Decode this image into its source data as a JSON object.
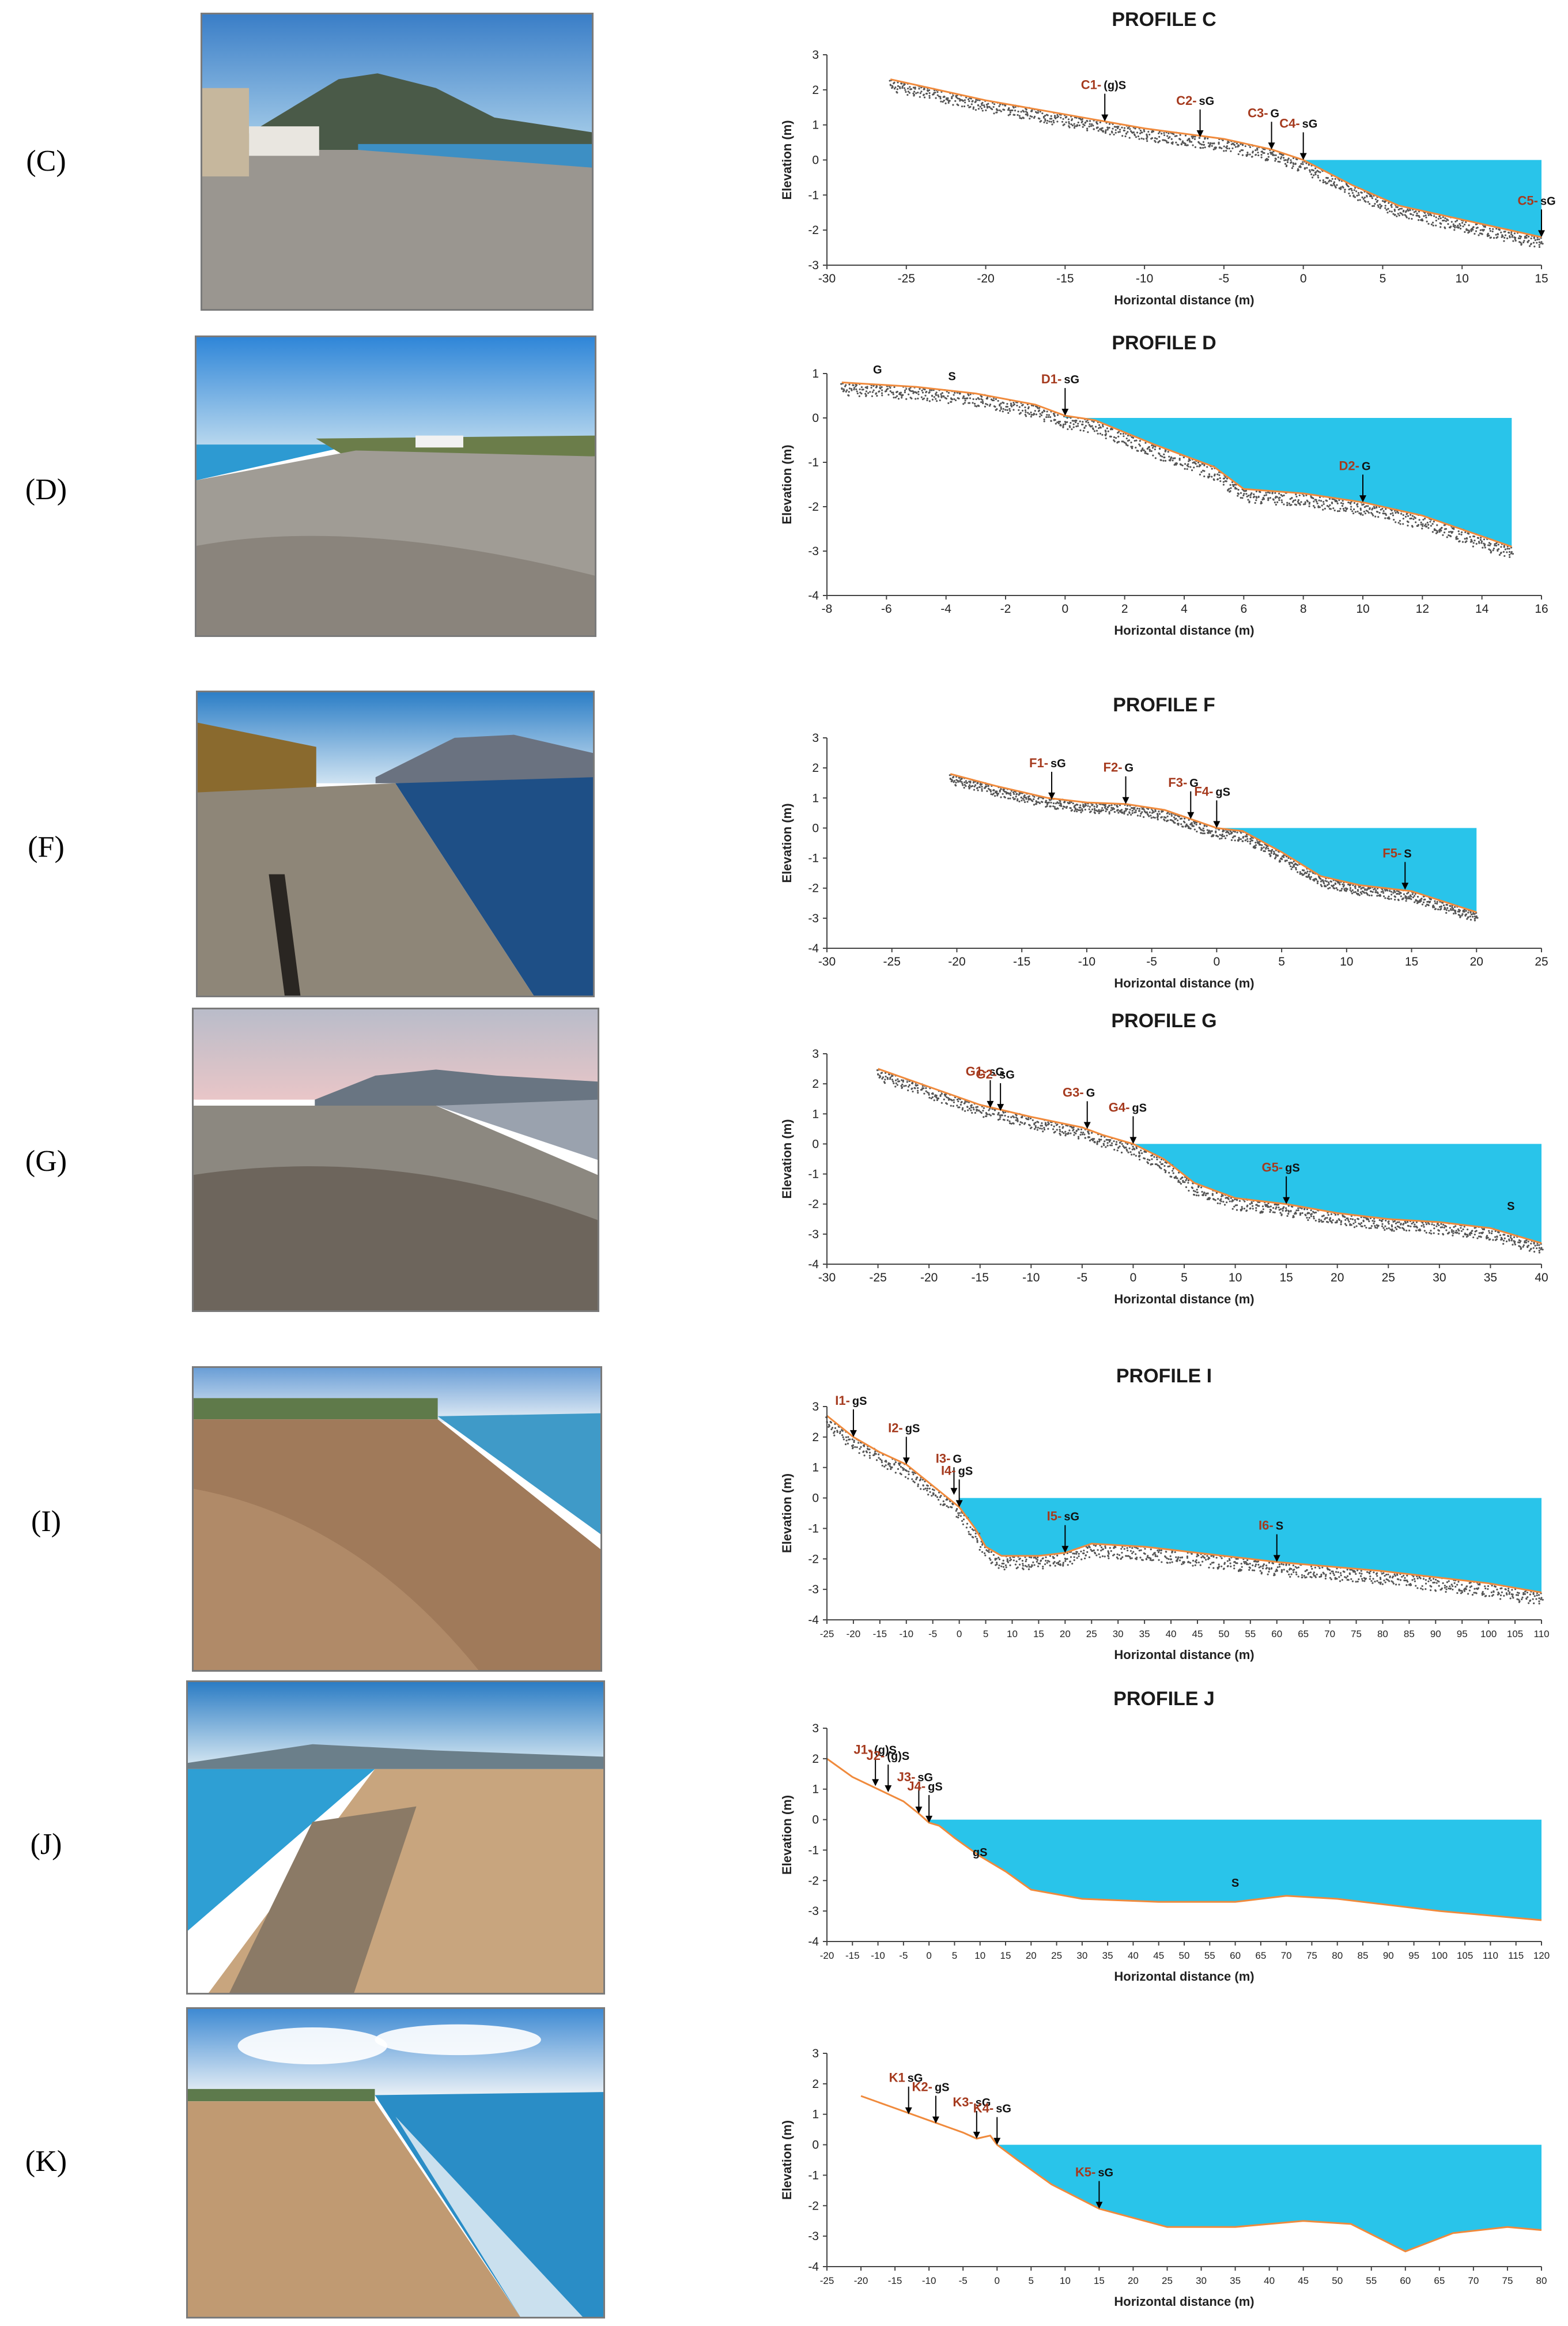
{
  "rows": [
    {
      "label": "(C)",
      "photo_desc": "photo-c"
    },
    {
      "label": "(D)",
      "photo_desc": "photo-d"
    },
    {
      "label": "(F)",
      "photo_desc": "photo-f"
    },
    {
      "label": "(G)",
      "photo_desc": "photo-g"
    },
    {
      "label": "(I)",
      "photo_desc": "photo-i"
    },
    {
      "label": "(J)",
      "photo_desc": "photo-j"
    },
    {
      "label": "(K)",
      "photo_desc": "photo-k"
    }
  ],
  "colors": {
    "water": "#29c4ea",
    "profile_line": "#f08a3c",
    "sample_label": "#a53a1e",
    "axis": "#444444",
    "sediment": "#555555"
  },
  "chart_data": [
    {
      "type": "area",
      "title": "PROFILE C",
      "ylabel": "Elevation (m)",
      "xlabel": "Horizontal distance (m)",
      "xlim": [
        -30,
        15
      ],
      "ylim": [
        -3,
        3
      ],
      "xticks": [
        -30,
        -25,
        -20,
        -15,
        -10,
        -5,
        0,
        5,
        10,
        15
      ],
      "yticks": [
        -3,
        -2,
        -1,
        0,
        1,
        2,
        3
      ],
      "profile": [
        [
          -26,
          2.3
        ],
        [
          -20,
          1.7
        ],
        [
          -15,
          1.3
        ],
        [
          -10,
          0.9
        ],
        [
          -5,
          0.6
        ],
        [
          -2,
          0.3
        ],
        [
          0,
          0
        ],
        [
          3,
          -0.7
        ],
        [
          6,
          -1.3
        ],
        [
          10,
          -1.7
        ],
        [
          15,
          -2.2
        ]
      ],
      "sediment_thickness": 0.35,
      "sediment_style": "dots",
      "samples": [
        {
          "id": "C1-",
          "code": "(g)S",
          "x": -12.5,
          "y": 1.1
        },
        {
          "id": "C2-",
          "code": "sG",
          "x": -6.5,
          "y": 0.65
        },
        {
          "id": "C3-",
          "code": "G",
          "x": -2,
          "y": 0.3
        },
        {
          "id": "C4-",
          "code": "sG",
          "x": 0,
          "y": 0.0
        },
        {
          "id": "C5-",
          "code": "sG",
          "x": 15,
          "y": -2.2
        }
      ],
      "annotations": []
    },
    {
      "type": "area",
      "title": "PROFILE D",
      "ylabel": "Elevation (m)",
      "xlabel": "Horizontal distance (m)",
      "xlim": [
        -8,
        16
      ],
      "ylim": [
        -4,
        1
      ],
      "xticks": [
        -8,
        -6,
        -4,
        -2,
        0,
        2,
        4,
        6,
        8,
        10,
        12,
        14,
        16
      ],
      "yticks": [
        -4,
        -3,
        -2,
        -1,
        0,
        1
      ],
      "profile": [
        [
          -7.5,
          0.8
        ],
        [
          -5,
          0.7
        ],
        [
          -3,
          0.55
        ],
        [
          -1,
          0.3
        ],
        [
          0,
          0.05
        ],
        [
          1,
          -0.05
        ],
        [
          3,
          -0.6
        ],
        [
          5,
          -1.1
        ],
        [
          6,
          -1.6
        ],
        [
          8,
          -1.7
        ],
        [
          10,
          -1.9
        ],
        [
          12,
          -2.2
        ],
        [
          15,
          -2.9
        ]
      ],
      "sediment_thickness": 0.3,
      "sediment_style": "dots",
      "samples": [
        {
          "id": "D1-",
          "code": "sG",
          "x": 0,
          "y": 0.05
        },
        {
          "id": "D2-",
          "code": "G",
          "x": 10,
          "y": -1.9
        }
      ],
      "annotations": [
        {
          "text": "G",
          "x": -6.3,
          "y": 1.0
        },
        {
          "text": "S",
          "x": -3.8,
          "y": 0.85
        }
      ]
    },
    {
      "type": "area",
      "title": "PROFILE F",
      "ylabel": "Elevation (m)",
      "xlabel": "Horizontal distance (m)",
      "xlim": [
        -30,
        25
      ],
      "ylim": [
        -4,
        3
      ],
      "xticks": [
        -30,
        -25,
        -20,
        -15,
        -10,
        -5,
        0,
        5,
        10,
        15,
        20,
        25
      ],
      "yticks": [
        -4,
        -3,
        -2,
        -1,
        0,
        1,
        2,
        3
      ],
      "profile": [
        [
          -20.5,
          1.8
        ],
        [
          -17,
          1.4
        ],
        [
          -13,
          1.0
        ],
        [
          -10,
          0.85
        ],
        [
          -7,
          0.8
        ],
        [
          -4,
          0.6
        ],
        [
          -2,
          0.3
        ],
        [
          0,
          0
        ],
        [
          2,
          -0.1
        ],
        [
          5,
          -0.8
        ],
        [
          8,
          -1.6
        ],
        [
          11,
          -1.9
        ],
        [
          15,
          -2.1
        ],
        [
          20,
          -2.8
        ]
      ],
      "sediment_thickness": 0.35,
      "sediment_style": "dots",
      "samples": [
        {
          "id": "F1-",
          "code": "sG",
          "x": -12.7,
          "y": 0.95
        },
        {
          "id": "F2-",
          "code": "G",
          "x": -7,
          "y": 0.8
        },
        {
          "id": "F3-",
          "code": "G",
          "x": -2,
          "y": 0.3
        },
        {
          "id": "F4-",
          "code": "gS",
          "x": 0,
          "y": 0.0
        },
        {
          "id": "F5-",
          "code": "S",
          "x": 14.5,
          "y": -2.05
        }
      ],
      "annotations": []
    },
    {
      "type": "area",
      "title": "PROFILE G",
      "ylabel": "Elevation (m)",
      "xlabel": "Horizontal distance (m)",
      "xlim": [
        -30,
        40
      ],
      "ylim": [
        -4,
        3
      ],
      "xticks": [
        -30,
        -25,
        -20,
        -15,
        -10,
        -5,
        0,
        5,
        10,
        15,
        20,
        25,
        30,
        35,
        40
      ],
      "yticks": [
        -4,
        -3,
        -2,
        -1,
        0,
        1,
        2,
        3
      ],
      "profile": [
        [
          -25,
          2.5
        ],
        [
          -20,
          1.9
        ],
        [
          -15,
          1.3
        ],
        [
          -10,
          0.9
        ],
        [
          -5,
          0.55
        ],
        [
          -3,
          0.3
        ],
        [
          0,
          0
        ],
        [
          3,
          -0.5
        ],
        [
          6,
          -1.3
        ],
        [
          10,
          -1.8
        ],
        [
          15,
          -2.0
        ],
        [
          20,
          -2.3
        ],
        [
          25,
          -2.5
        ],
        [
          30,
          -2.6
        ],
        [
          35,
          -2.8
        ],
        [
          40,
          -3.3
        ]
      ],
      "sediment_thickness": 0.4,
      "sediment_style": "dots",
      "samples": [
        {
          "id": "G1-",
          "code": "sG",
          "x": -14,
          "y": 1.2
        },
        {
          "id": "G2-",
          "code": "sG",
          "x": -13,
          "y": 1.1
        },
        {
          "id": "G3-",
          "code": "G",
          "x": -4.5,
          "y": 0.5
        },
        {
          "id": "G4-",
          "code": "gS",
          "x": 0,
          "y": 0.0
        },
        {
          "id": "G5-",
          "code": "gS",
          "x": 15,
          "y": -2.0
        }
      ],
      "annotations": [
        {
          "text": "S",
          "x": 37,
          "y": -2.2
        }
      ]
    },
    {
      "type": "area",
      "title": "PROFILE I",
      "ylabel": "Elevation (m)",
      "xlabel": "Horizontal distance (m)",
      "xlim": [
        -25,
        110
      ],
      "ylim": [
        -4,
        3
      ],
      "xticks": [
        -25,
        -20,
        -15,
        -10,
        -5,
        0,
        5,
        10,
        15,
        20,
        25,
        30,
        35,
        40,
        45,
        50,
        55,
        60,
        65,
        70,
        75,
        80,
        85,
        90,
        95,
        100,
        105,
        110
      ],
      "yticks": [
        -4,
        -3,
        -2,
        -1,
        0,
        1,
        2,
        3
      ],
      "profile": [
        [
          -25,
          2.7
        ],
        [
          -20,
          2.0
        ],
        [
          -15,
          1.5
        ],
        [
          -10,
          1.1
        ],
        [
          -5,
          0.4
        ],
        [
          0,
          -0.3
        ],
        [
          3,
          -1.0
        ],
        [
          5,
          -1.6
        ],
        [
          8,
          -1.9
        ],
        [
          15,
          -1.9
        ],
        [
          20,
          -1.8
        ],
        [
          25,
          -1.5
        ],
        [
          35,
          -1.6
        ],
        [
          50,
          -1.9
        ],
        [
          60,
          -2.1
        ],
        [
          80,
          -2.4
        ],
        [
          100,
          -2.8
        ],
        [
          110,
          -3.1
        ]
      ],
      "sediment_thickness": 0.45,
      "sediment_style": "dots",
      "samples": [
        {
          "id": "I1-",
          "code": "gS",
          "x": -20,
          "y": 2.0
        },
        {
          "id": "I2-",
          "code": "gS",
          "x": -10,
          "y": 1.1
        },
        {
          "id": "I3-",
          "code": "G",
          "x": -1,
          "y": 0.1
        },
        {
          "id": "I4-",
          "code": "gS",
          "x": 0,
          "y": -0.3
        },
        {
          "id": "I5-",
          "code": "sG",
          "x": 20,
          "y": -1.8
        },
        {
          "id": "I6-",
          "code": "S",
          "x": 60,
          "y": -2.1
        }
      ],
      "annotations": []
    },
    {
      "type": "area",
      "title": "PROFILE J",
      "ylabel": "Elevation (m)",
      "xlabel": "Horizontal distance (m)",
      "xlim": [
        -20,
        120
      ],
      "ylim": [
        -4,
        3
      ],
      "xticks": [
        -20,
        -15,
        -10,
        -5,
        0,
        5,
        10,
        15,
        20,
        25,
        30,
        35,
        40,
        45,
        50,
        55,
        60,
        65,
        70,
        75,
        80,
        85,
        90,
        95,
        100,
        105,
        110,
        115,
        120
      ],
      "yticks": [
        -4,
        -3,
        -2,
        -1,
        0,
        1,
        2,
        3
      ],
      "profile": [
        [
          -20,
          2.0
        ],
        [
          -15,
          1.4
        ],
        [
          -10,
          1.0
        ],
        [
          -5,
          0.6
        ],
        [
          -2,
          0.2
        ],
        [
          0,
          -0.1
        ],
        [
          2,
          -0.2
        ],
        [
          5,
          -0.6
        ],
        [
          10,
          -1.2
        ],
        [
          15,
          -1.7
        ],
        [
          20,
          -2.3
        ],
        [
          30,
          -2.6
        ],
        [
          45,
          -2.7
        ],
        [
          60,
          -2.7
        ],
        [
          70,
          -2.5
        ],
        [
          80,
          -2.6
        ],
        [
          100,
          -3.0
        ],
        [
          120,
          -3.3
        ]
      ],
      "sediment_thickness": 0,
      "sediment_style": "none",
      "samples": [
        {
          "id": "J1-",
          "code": "(g)S",
          "x": -10.5,
          "y": 1.1
        },
        {
          "id": "J2-",
          "code": "(g)S",
          "x": -8,
          "y": 0.9
        },
        {
          "id": "J3-",
          "code": "sG",
          "x": -2,
          "y": 0.2
        },
        {
          "id": "J4-",
          "code": "gS",
          "x": 0,
          "y": -0.1
        }
      ],
      "annotations": [
        {
          "text": "gS",
          "x": 10,
          "y": -1.2
        },
        {
          "text": "S",
          "x": 60,
          "y": -2.2
        }
      ]
    },
    {
      "type": "area",
      "title": "",
      "ylabel": "Elevation (m)",
      "xlabel": "Horizontal distance (m)",
      "xlim": [
        -25,
        80
      ],
      "ylim": [
        -4,
        3
      ],
      "xticks": [
        -25,
        -20,
        -15,
        -10,
        -5,
        0,
        5,
        10,
        15,
        20,
        25,
        30,
        35,
        40,
        45,
        50,
        55,
        60,
        65,
        70,
        75,
        80
      ],
      "yticks": [
        -4,
        -3,
        -2,
        -1,
        0,
        1,
        2,
        3
      ],
      "profile": [
        [
          -20,
          1.6
        ],
        [
          -15,
          1.2
        ],
        [
          -10,
          0.8
        ],
        [
          -5,
          0.4
        ],
        [
          -3,
          0.2
        ],
        [
          -1,
          0.3
        ],
        [
          0,
          0
        ],
        [
          3,
          -0.5
        ],
        [
          8,
          -1.3
        ],
        [
          15,
          -2.1
        ],
        [
          25,
          -2.7
        ],
        [
          35,
          -2.7
        ],
        [
          45,
          -2.5
        ],
        [
          52,
          -2.6
        ],
        [
          60,
          -3.5
        ],
        [
          67,
          -2.9
        ],
        [
          75,
          -2.7
        ],
        [
          80,
          -2.8
        ]
      ],
      "sediment_thickness": 0,
      "sediment_style": "none",
      "samples": [
        {
          "id": "K1",
          "code": "sG",
          "x": -13,
          "y": 1.0
        },
        {
          "id": "K2-",
          "code": "gS",
          "x": -9,
          "y": 0.7
        },
        {
          "id": "K3-",
          "code": "sG",
          "x": -3,
          "y": 0.2
        },
        {
          "id": "K4-",
          "code": "sG",
          "x": 0,
          "y": 0.0
        },
        {
          "id": "K5-",
          "code": "sG",
          "x": 15,
          "y": -2.1
        }
      ],
      "annotations": []
    }
  ]
}
